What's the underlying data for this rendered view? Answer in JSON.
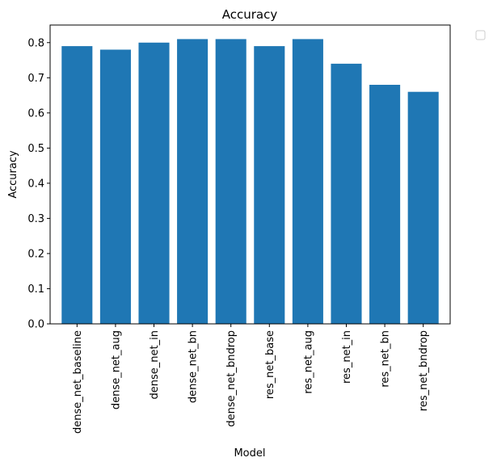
{
  "chart_data": {
    "type": "bar",
    "title": "Accuracy",
    "xlabel": "Model",
    "ylabel": "Accuracy",
    "categories": [
      "dense_net_baseline",
      "dense_net_aug",
      "dense_net_in",
      "dense_net_bn",
      "dense_net_bndrop",
      "res_net_base",
      "res_net_aug",
      "res_net_in",
      "res_net_bn",
      "res_net_bndrop"
    ],
    "values": [
      0.79,
      0.78,
      0.8,
      0.81,
      0.81,
      0.79,
      0.81,
      0.74,
      0.68,
      0.66
    ],
    "ylim": [
      0,
      0.85
    ],
    "yticks": [
      "0.0",
      "0.1",
      "0.2",
      "0.3",
      "0.4",
      "0.5",
      "0.6",
      "0.7",
      "0.8"
    ],
    "bar_color": "#1f77b4",
    "grid": false,
    "legend": {
      "placement": "outside-top-right",
      "entries": []
    }
  }
}
